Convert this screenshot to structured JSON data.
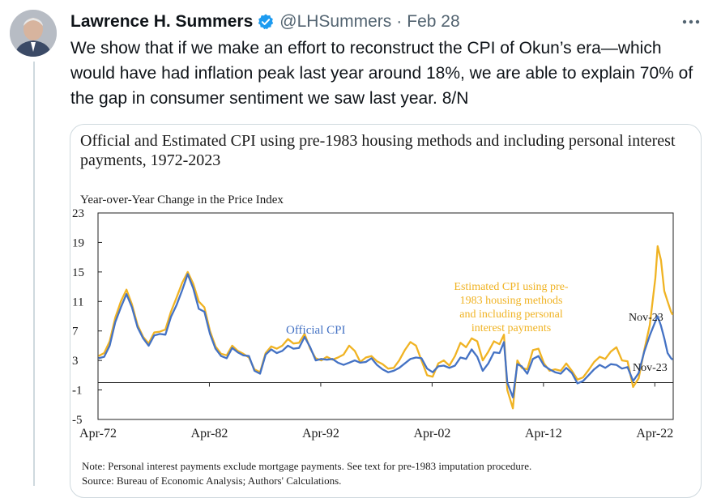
{
  "tweet": {
    "author_name": "Lawrence H. Summers",
    "handle": "@LHSummers",
    "separator": "·",
    "date": "Feb 28",
    "text": "We show that if we make an effort to reconstruct the CPI of Okun’s era—which would have had inflation peak last year around 18%, we are able to explain 70% of the gap in consumer sentiment we saw last year. 8/N",
    "verified_color": "#1d9bf0",
    "more_icon": "more-horizontal-icon"
  },
  "chart_data": {
    "type": "line",
    "title": "Official and Estimated CPI using pre-1983 housing methods and including personal interest payments, 1972-2023",
    "ylabel": "Year-over-Year Change in the Price Index",
    "ylim": [
      -5,
      23
    ],
    "yticks": [
      "23",
      "19",
      "15",
      "11",
      "7",
      "3",
      "-1",
      "-5"
    ],
    "xlim": [
      1972.25,
      2023.9
    ],
    "xticks": [
      {
        "label": "Apr-72",
        "x": 1972.25
      },
      {
        "label": "Apr-82",
        "x": 1982.25
      },
      {
        "label": "Apr-92",
        "x": 1992.25
      },
      {
        "label": "Apr-02",
        "x": 2002.25
      },
      {
        "label": "Apr-12",
        "x": 2012.25
      },
      {
        "label": "Apr-22",
        "x": 2022.25
      }
    ],
    "series": [
      {
        "name": "Official CPI",
        "color": "#4472c4",
        "points": [
          [
            1972.3,
            3.3
          ],
          [
            1972.8,
            3.5
          ],
          [
            1973.3,
            5.0
          ],
          [
            1973.8,
            8.2
          ],
          [
            1974.3,
            10.2
          ],
          [
            1974.8,
            12.0
          ],
          [
            1975.3,
            10.2
          ],
          [
            1975.8,
            7.5
          ],
          [
            1976.3,
            6.0
          ],
          [
            1976.8,
            5.0
          ],
          [
            1977.3,
            6.4
          ],
          [
            1977.8,
            6.6
          ],
          [
            1978.3,
            6.5
          ],
          [
            1978.8,
            8.9
          ],
          [
            1979.3,
            10.5
          ],
          [
            1979.8,
            12.5
          ],
          [
            1980.3,
            14.7
          ],
          [
            1980.8,
            12.8
          ],
          [
            1981.3,
            10.0
          ],
          [
            1981.8,
            9.6
          ],
          [
            1982.3,
            6.6
          ],
          [
            1982.8,
            4.6
          ],
          [
            1983.3,
            3.6
          ],
          [
            1983.8,
            3.3
          ],
          [
            1984.3,
            4.7
          ],
          [
            1984.8,
            4.1
          ],
          [
            1985.3,
            3.7
          ],
          [
            1985.8,
            3.6
          ],
          [
            1986.3,
            1.6
          ],
          [
            1986.8,
            1.2
          ],
          [
            1987.3,
            3.8
          ],
          [
            1987.8,
            4.5
          ],
          [
            1988.3,
            4.0
          ],
          [
            1988.8,
            4.3
          ],
          [
            1989.3,
            5.0
          ],
          [
            1989.8,
            4.6
          ],
          [
            1990.3,
            4.7
          ],
          [
            1990.8,
            6.2
          ],
          [
            1991.3,
            4.8
          ],
          [
            1991.8,
            3.0
          ],
          [
            1992.3,
            3.2
          ],
          [
            1992.8,
            3.1
          ],
          [
            1993.3,
            3.2
          ],
          [
            1993.8,
            2.7
          ],
          [
            1994.3,
            2.4
          ],
          [
            1994.8,
            2.7
          ],
          [
            1995.3,
            3.0
          ],
          [
            1995.8,
            2.7
          ],
          [
            1996.3,
            2.8
          ],
          [
            1996.8,
            3.3
          ],
          [
            1997.3,
            2.4
          ],
          [
            1997.8,
            1.8
          ],
          [
            1998.3,
            1.4
          ],
          [
            1998.8,
            1.6
          ],
          [
            1999.3,
            2.0
          ],
          [
            1999.8,
            2.6
          ],
          [
            2000.3,
            3.2
          ],
          [
            2000.8,
            3.4
          ],
          [
            2001.3,
            3.3
          ],
          [
            2001.8,
            1.9
          ],
          [
            2002.3,
            1.4
          ],
          [
            2002.8,
            2.2
          ],
          [
            2003.3,
            2.3
          ],
          [
            2003.8,
            2.0
          ],
          [
            2004.3,
            2.3
          ],
          [
            2004.8,
            3.4
          ],
          [
            2005.3,
            3.2
          ],
          [
            2005.8,
            4.5
          ],
          [
            2006.3,
            3.5
          ],
          [
            2006.8,
            1.6
          ],
          [
            2007.3,
            2.6
          ],
          [
            2007.8,
            4.1
          ],
          [
            2008.3,
            4.0
          ],
          [
            2008.7,
            5.5
          ],
          [
            2009.0,
            0.0
          ],
          [
            2009.5,
            -2.0
          ],
          [
            2009.9,
            2.5
          ],
          [
            2010.3,
            2.2
          ],
          [
            2010.8,
            1.2
          ],
          [
            2011.3,
            3.2
          ],
          [
            2011.8,
            3.6
          ],
          [
            2012.3,
            2.3
          ],
          [
            2012.8,
            1.8
          ],
          [
            2013.3,
            1.4
          ],
          [
            2013.8,
            1.2
          ],
          [
            2014.3,
            2.0
          ],
          [
            2014.8,
            1.3
          ],
          [
            2015.3,
            -0.1
          ],
          [
            2015.8,
            0.2
          ],
          [
            2016.3,
            1.0
          ],
          [
            2016.8,
            1.8
          ],
          [
            2017.3,
            2.4
          ],
          [
            2017.8,
            2.0
          ],
          [
            2018.3,
            2.5
          ],
          [
            2018.8,
            2.4
          ],
          [
            2019.3,
            1.9
          ],
          [
            2019.8,
            2.1
          ],
          [
            2020.3,
            0.2
          ],
          [
            2020.8,
            1.3
          ],
          [
            2021.3,
            4.2
          ],
          [
            2021.8,
            6.4
          ],
          [
            2022.3,
            8.3
          ],
          [
            2022.5,
            9.0
          ],
          [
            2022.8,
            7.7
          ],
          [
            2023.1,
            6.0
          ],
          [
            2023.4,
            4.0
          ],
          [
            2023.7,
            3.3
          ],
          [
            2023.85,
            3.1
          ]
        ]
      },
      {
        "name": "Estimated CPI using pre-1983 housing methods and including personal interest payments",
        "color": "#f0b323",
        "points": [
          [
            1972.3,
            3.6
          ],
          [
            1972.8,
            4.0
          ],
          [
            1973.3,
            5.6
          ],
          [
            1973.8,
            8.8
          ],
          [
            1974.3,
            11.0
          ],
          [
            1974.8,
            12.6
          ],
          [
            1975.3,
            10.6
          ],
          [
            1975.8,
            7.8
          ],
          [
            1976.3,
            6.2
          ],
          [
            1976.8,
            5.3
          ],
          [
            1977.3,
            6.8
          ],
          [
            1977.8,
            6.9
          ],
          [
            1978.3,
            7.2
          ],
          [
            1978.8,
            9.6
          ],
          [
            1979.3,
            11.5
          ],
          [
            1979.8,
            13.5
          ],
          [
            1980.3,
            15.0
          ],
          [
            1980.8,
            13.4
          ],
          [
            1981.3,
            11.0
          ],
          [
            1981.8,
            10.2
          ],
          [
            1982.3,
            7.0
          ],
          [
            1982.8,
            4.9
          ],
          [
            1983.3,
            3.9
          ],
          [
            1983.8,
            3.7
          ],
          [
            1984.3,
            5.0
          ],
          [
            1984.8,
            4.3
          ],
          [
            1985.3,
            3.9
          ],
          [
            1985.8,
            3.4
          ],
          [
            1986.3,
            1.8
          ],
          [
            1986.8,
            1.4
          ],
          [
            1987.3,
            4.0
          ],
          [
            1987.8,
            4.9
          ],
          [
            1988.3,
            4.6
          ],
          [
            1988.8,
            5.0
          ],
          [
            1989.3,
            5.9
          ],
          [
            1989.8,
            5.3
          ],
          [
            1990.3,
            5.4
          ],
          [
            1990.8,
            6.6
          ],
          [
            1991.3,
            4.6
          ],
          [
            1991.8,
            3.3
          ],
          [
            1992.3,
            3.0
          ],
          [
            1992.8,
            3.5
          ],
          [
            1993.3,
            3.1
          ],
          [
            1993.8,
            3.4
          ],
          [
            1994.3,
            3.8
          ],
          [
            1994.8,
            5.0
          ],
          [
            1995.3,
            4.3
          ],
          [
            1995.8,
            2.8
          ],
          [
            1996.3,
            3.4
          ],
          [
            1996.8,
            3.6
          ],
          [
            1997.3,
            2.9
          ],
          [
            1997.8,
            2.5
          ],
          [
            1998.3,
            1.9
          ],
          [
            1998.8,
            2.0
          ],
          [
            1999.3,
            3.0
          ],
          [
            1999.8,
            4.4
          ],
          [
            2000.3,
            5.5
          ],
          [
            2000.8,
            5.0
          ],
          [
            2001.3,
            3.0
          ],
          [
            2001.8,
            1.0
          ],
          [
            2002.3,
            0.8
          ],
          [
            2002.8,
            2.6
          ],
          [
            2003.3,
            3.0
          ],
          [
            2003.8,
            2.3
          ],
          [
            2004.3,
            3.6
          ],
          [
            2004.8,
            5.4
          ],
          [
            2005.3,
            4.8
          ],
          [
            2005.8,
            6.0
          ],
          [
            2006.3,
            5.6
          ],
          [
            2006.8,
            3.0
          ],
          [
            2007.3,
            4.2
          ],
          [
            2007.8,
            5.6
          ],
          [
            2008.3,
            5.2
          ],
          [
            2008.7,
            6.5
          ],
          [
            2009.0,
            -1.0
          ],
          [
            2009.5,
            -3.5
          ],
          [
            2009.9,
            3.0
          ],
          [
            2010.3,
            2.0
          ],
          [
            2010.8,
            1.8
          ],
          [
            2011.3,
            4.4
          ],
          [
            2011.8,
            4.6
          ],
          [
            2012.3,
            2.6
          ],
          [
            2012.8,
            1.6
          ],
          [
            2013.3,
            1.8
          ],
          [
            2013.8,
            1.6
          ],
          [
            2014.3,
            2.6
          ],
          [
            2014.8,
            1.6
          ],
          [
            2015.3,
            0.4
          ],
          [
            2015.8,
            0.7
          ],
          [
            2016.3,
            1.7
          ],
          [
            2016.8,
            2.8
          ],
          [
            2017.3,
            3.5
          ],
          [
            2017.8,
            3.2
          ],
          [
            2018.3,
            4.2
          ],
          [
            2018.8,
            4.8
          ],
          [
            2019.3,
            3.0
          ],
          [
            2019.8,
            2.9
          ],
          [
            2020.3,
            -0.6
          ],
          [
            2020.8,
            0.6
          ],
          [
            2021.3,
            4.4
          ],
          [
            2021.8,
            7.8
          ],
          [
            2022.3,
            14.2
          ],
          [
            2022.5,
            18.5
          ],
          [
            2022.8,
            16.6
          ],
          [
            2023.1,
            12.4
          ],
          [
            2023.4,
            11.0
          ],
          [
            2023.7,
            9.6
          ],
          [
            2023.85,
            9.2
          ]
        ]
      }
    ],
    "annotations": {
      "official_label": "Official CPI",
      "estimated_label_lines": [
        "Estimated CPI using pre-",
        "1983 housing methods",
        "and including  personal",
        "interest payments"
      ],
      "end_label_estimated": "Nov-23",
      "end_label_official": "Nov-23"
    },
    "grid": false,
    "note": "Note: Personal interest payments exclude mortgage payments. See text for pre-1983 imputation procedure.",
    "source": "Source: Bureau of Economic Analysis; Authors' Calculations."
  }
}
